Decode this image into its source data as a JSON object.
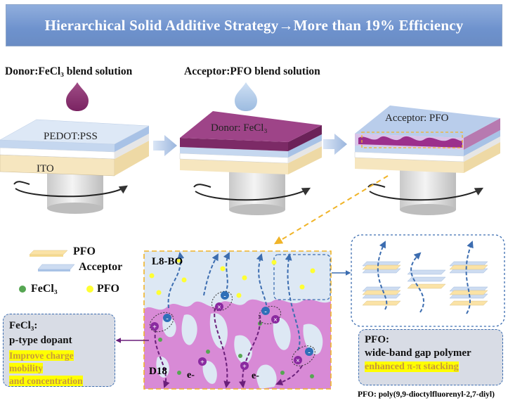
{
  "banner": {
    "title": "Hierarchical Solid Additive Strategy→More than 19% Efficiency"
  },
  "steps": {
    "donor_solution": "Donor:FeCl₃ blend solution",
    "acceptor_solution": "Acceptor:PFO blend solution",
    "pedot_label": "PEDOT:PSS",
    "ito_label": "ITO",
    "donor_layer": "Donor: FeCl₃",
    "acceptor_layer": "Acceptor: PFO"
  },
  "legend": {
    "pfo": "PFO",
    "acceptor": "Acceptor",
    "fecl3": "FeCl₃",
    "pfo_dot": "PFO"
  },
  "morphology": {
    "l8bo": "L8-BO",
    "d18": "D18",
    "electron1": "e-",
    "electron2": "e-"
  },
  "fecl3_box": {
    "title": "FeCl₃:",
    "subtitle": "p-type dopant",
    "highlight1": "Improve charge mobility",
    "highlight2": "and concentration"
  },
  "pfo_box": {
    "title": "PFO:",
    "subtitle": "wide-band gap polymer",
    "highlight": "enhanced  π-π stacking"
  },
  "footnote": "PFO: poly(9,9-dioctylfluorenyl-2,7-diyl)",
  "colors": {
    "banner": "#7595cc",
    "donor": "#8a2f6e",
    "acceptor": "#c6d6ee",
    "pfo": "#f6dfa4",
    "fecl3_dot": "#56a652",
    "pfo_dot": "#ffff33",
    "d18": "#d88ad6"
  }
}
